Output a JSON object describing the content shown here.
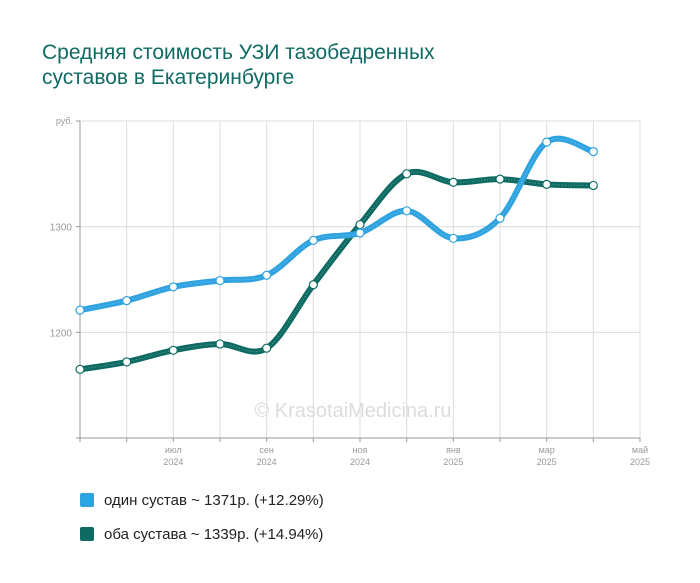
{
  "title_line1": "Средняя стоимость УЗИ тазобедренных",
  "title_line2": "суставов в Екатеринбурге",
  "watermark": "© KrasotaiMedicina.ru",
  "chart_data": {
    "type": "line",
    "y_unit": "руб.",
    "ylim": [
      1100,
      1400
    ],
    "y_ticks": [
      1200,
      1300
    ],
    "x": [
      "2024-05",
      "2024-06",
      "2024-07",
      "2024-08",
      "2024-09",
      "2024-10",
      "2024-11",
      "2024-12",
      "2025-01",
      "2025-02",
      "2025-03",
      "2025-04",
      "2025-05"
    ],
    "x_tick_labels": [
      {
        "month": "июл",
        "year": "2024"
      },
      {
        "month": "сен",
        "year": "2024"
      },
      {
        "month": "ноя",
        "year": "2024"
      },
      {
        "month": "янв",
        "year": "2025"
      },
      {
        "month": "мар",
        "year": "2025"
      },
      {
        "month": "май",
        "year": "2025"
      }
    ],
    "x_tick_indices": [
      2,
      4,
      6,
      8,
      10,
      12
    ],
    "grid": true,
    "legend_position": "bottom-left",
    "series": [
      {
        "name": "один сустав",
        "legend": "один сустав ~ 1371р. (+12.29%)",
        "color": "#2ea3e0",
        "values": [
          1221,
          1230,
          1243,
          1249,
          1254,
          1287,
          1294,
          1315,
          1289,
          1308,
          1380,
          1371,
          null
        ]
      },
      {
        "name": "оба сустава",
        "legend": "оба сустава ~ 1339р. (+14.94%)",
        "color": "#0d6b63",
        "values": [
          1165,
          1172,
          1183,
          1189,
          1185,
          1245,
          1302,
          1350,
          1342,
          1345,
          1340,
          1339,
          null
        ]
      }
    ]
  }
}
